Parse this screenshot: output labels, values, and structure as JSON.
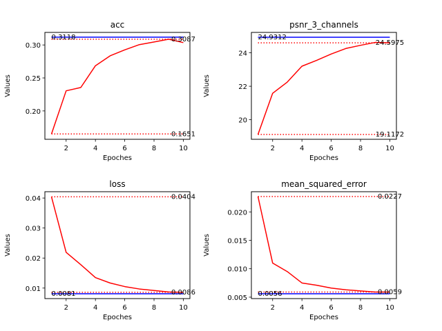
{
  "chart_data": [
    {
      "type": "line",
      "title": "acc",
      "xlabel": "Epoches",
      "ylabel": "Values",
      "xlim": [
        0.55,
        10.45
      ],
      "ylim": [
        0.157,
        0.319
      ],
      "xticks": [
        2,
        4,
        6,
        8,
        10
      ],
      "yticks": [
        0.2,
        0.25,
        0.3
      ],
      "ytick_labels": [
        "0.20",
        "0.25",
        "0.30"
      ],
      "x": [
        1,
        2,
        3,
        4,
        5,
        6,
        7,
        8,
        9,
        10
      ],
      "series": [
        {
          "values": [
            0.1651,
            0.2305,
            0.2355,
            0.2685,
            0.2835,
            0.2925,
            0.3005,
            0.3045,
            0.3087,
            0.3035
          ],
          "color": "#ff0000"
        }
      ],
      "reference_lines": [
        {
          "y": 0.3118,
          "color": "#0000ff",
          "style": "solid"
        },
        {
          "y": 0.3087,
          "color": "#ff0000",
          "style": "dotted"
        },
        {
          "y": 0.1651,
          "color": "#ff0000",
          "style": "dotted"
        }
      ],
      "annotations": [
        {
          "text": "0.3118",
          "x": 1,
          "y": 0.3118,
          "anchor": "start"
        },
        {
          "text": "0.3087",
          "x": 10,
          "y": 0.3087,
          "anchor": "middle"
        },
        {
          "text": "0.1651",
          "x": 10,
          "y": 0.1651,
          "anchor": "middle"
        }
      ]
    },
    {
      "type": "line",
      "title": "psnr_3_channels",
      "xlabel": "Epoches",
      "ylabel": "Values",
      "xlim": [
        0.55,
        10.45
      ],
      "ylim": [
        18.83,
        25.22
      ],
      "xticks": [
        2,
        4,
        6,
        8,
        10
      ],
      "yticks": [
        20,
        22,
        24
      ],
      "ytick_labels": [
        "20",
        "22",
        "24"
      ],
      "x": [
        1,
        2,
        3,
        4,
        5,
        6,
        7,
        8,
        9,
        10
      ],
      "series": [
        {
          "values": [
            19.1172,
            21.58,
            22.25,
            23.2,
            23.55,
            23.93,
            24.26,
            24.45,
            24.62,
            24.5975
          ],
          "color": "#ff0000"
        }
      ],
      "reference_lines": [
        {
          "y": 24.9312,
          "color": "#0000ff",
          "style": "solid"
        },
        {
          "y": 24.5975,
          "color": "#ff0000",
          "style": "dotted"
        },
        {
          "y": 19.1172,
          "color": "#ff0000",
          "style": "dotted"
        }
      ],
      "annotations": [
        {
          "text": "24.9312",
          "x": 1,
          "y": 24.9312,
          "anchor": "start"
        },
        {
          "text": "24.5975",
          "x": 10,
          "y": 24.5975,
          "anchor": "middle"
        },
        {
          "text": "19.1172",
          "x": 10,
          "y": 19.1172,
          "anchor": "middle"
        }
      ]
    },
    {
      "type": "line",
      "title": "loss",
      "xlabel": "Epoches",
      "ylabel": "Values",
      "xlim": [
        0.55,
        10.45
      ],
      "ylim": [
        0.0065,
        0.0421
      ],
      "xticks": [
        2,
        4,
        6,
        8,
        10
      ],
      "yticks": [
        0.01,
        0.02,
        0.03,
        0.04
      ],
      "ytick_labels": [
        "0.01",
        "0.02",
        "0.03",
        "0.04"
      ],
      "x": [
        1,
        2,
        3,
        4,
        5,
        6,
        7,
        8,
        9,
        10
      ],
      "series": [
        {
          "values": [
            0.0404,
            0.0219,
            0.0178,
            0.0135,
            0.0117,
            0.0105,
            0.0097,
            0.0092,
            0.0087,
            0.0086
          ],
          "color": "#ff0000"
        }
      ],
      "reference_lines": [
        {
          "y": 0.0404,
          "color": "#ff0000",
          "style": "dotted"
        },
        {
          "y": 0.0086,
          "color": "#ff0000",
          "style": "dotted"
        },
        {
          "y": 0.0081,
          "color": "#0000ff",
          "style": "solid"
        }
      ],
      "annotations": [
        {
          "text": "0.0404",
          "x": 10,
          "y": 0.0404,
          "anchor": "middle"
        },
        {
          "text": "0.0081",
          "x": 1,
          "y": 0.0081,
          "anchor": "start"
        },
        {
          "text": "0.0086",
          "x": 10,
          "y": 0.0086,
          "anchor": "middle"
        }
      ]
    },
    {
      "type": "line",
      "title": "mean_squared_error",
      "xlabel": "Epoches",
      "ylabel": "Values",
      "xlim": [
        0.55,
        10.45
      ],
      "ylim": [
        0.00475,
        0.02355
      ],
      "xticks": [
        2,
        4,
        6,
        8,
        10
      ],
      "yticks": [
        0.005,
        0.01,
        0.015,
        0.02
      ],
      "ytick_labels": [
        "0.005",
        "0.010",
        "0.015",
        "0.020"
      ],
      "x": [
        1,
        2,
        3,
        4,
        5,
        6,
        7,
        8,
        9,
        10
      ],
      "series": [
        {
          "values": [
            0.0227,
            0.011,
            0.0095,
            0.0075,
            0.0071,
            0.0066,
            0.0063,
            0.0061,
            0.0059,
            0.0059
          ],
          "color": "#ff0000"
        }
      ],
      "reference_lines": [
        {
          "y": 0.0227,
          "color": "#ff0000",
          "style": "dotted"
        },
        {
          "y": 0.0059,
          "color": "#ff0000",
          "style": "dotted"
        },
        {
          "y": 0.0056,
          "color": "#0000ff",
          "style": "solid"
        }
      ],
      "annotations": [
        {
          "text": "0.0227",
          "x": 10,
          "y": 0.0227,
          "anchor": "middle"
        },
        {
          "text": "0.0056",
          "x": 1,
          "y": 0.0056,
          "anchor": "start"
        },
        {
          "text": "0.0059",
          "x": 10,
          "y": 0.0059,
          "anchor": "middle"
        }
      ]
    }
  ]
}
